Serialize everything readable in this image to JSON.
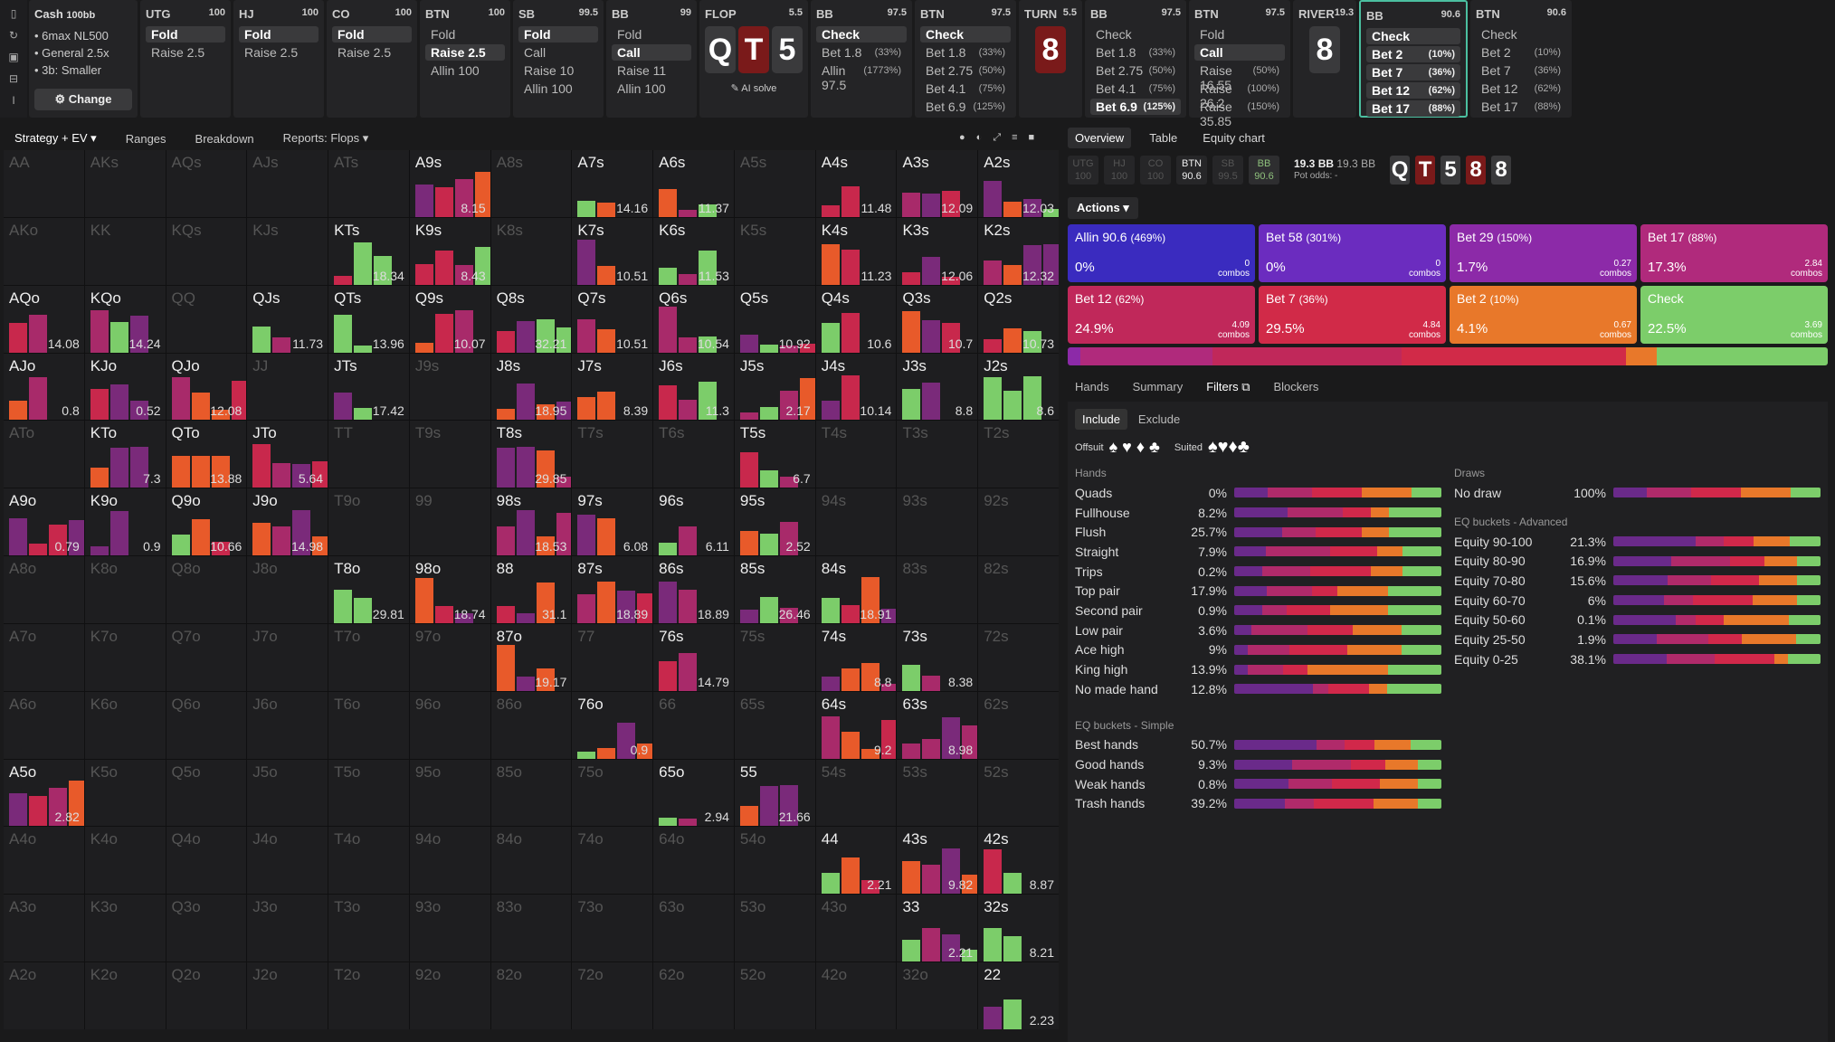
{
  "sidebar_icons": [
    "bookmark-icon",
    "refresh-icon",
    "save-icon",
    "car-icon",
    "text-icon"
  ],
  "cash": {
    "title": "Cash",
    "sub": "100bb",
    "lines": [
      "6max NL500",
      "General 2.5x",
      "3b: Smaller"
    ],
    "change": "⚙ Change"
  },
  "columns": [
    {
      "pos": "UTG",
      "stack": "100",
      "actions": [
        {
          "l": "Fold",
          "sel": true
        },
        {
          "l": "Raise 2.5"
        }
      ]
    },
    {
      "pos": "HJ",
      "stack": "100",
      "actions": [
        {
          "l": "Fold",
          "sel": true
        },
        {
          "l": "Raise 2.5"
        }
      ]
    },
    {
      "pos": "CO",
      "stack": "100",
      "actions": [
        {
          "l": "Fold",
          "sel": true
        },
        {
          "l": "Raise 2.5"
        }
      ]
    },
    {
      "pos": "BTN",
      "stack": "100",
      "actions": [
        {
          "l": "Fold"
        },
        {
          "l": "Raise 2.5",
          "sel": true
        },
        {
          "l": "Allin 100"
        }
      ]
    },
    {
      "pos": "SB",
      "stack": "99.5",
      "actions": [
        {
          "l": "Fold",
          "sel": true
        },
        {
          "l": "Call"
        },
        {
          "l": "Raise 10"
        },
        {
          "l": "Allin 100"
        }
      ]
    },
    {
      "pos": "BB",
      "stack": "99",
      "actions": [
        {
          "l": "Fold"
        },
        {
          "l": "Call",
          "sel": true
        },
        {
          "l": "Raise 11"
        },
        {
          "l": "Allin 100"
        }
      ]
    },
    {
      "street": "FLOP",
      "pot": "5.5",
      "cards": [
        {
          "c": "Q"
        },
        {
          "c": "T",
          "red": true
        },
        {
          "c": "5"
        }
      ],
      "ai": "✎ AI solve"
    },
    {
      "pos": "BB",
      "stack": "97.5",
      "actions": [
        {
          "l": "Check",
          "sel": true
        },
        {
          "l": "Bet 1.8",
          "p": "(33%)"
        },
        {
          "l": "Allin 97.5",
          "p": "(1773%)"
        }
      ]
    },
    {
      "pos": "BTN",
      "stack": "97.5",
      "actions": [
        {
          "l": "Check",
          "sel": true
        },
        {
          "l": "Bet 1.8",
          "p": "(33%)"
        },
        {
          "l": "Bet 2.75",
          "p": "(50%)"
        },
        {
          "l": "Bet 4.1",
          "p": "(75%)"
        },
        {
          "l": "Bet 6.9",
          "p": "(125%)"
        }
      ]
    },
    {
      "street": "TURN",
      "pot": "5.5",
      "cards": [
        {
          "c": "8",
          "red": true
        }
      ]
    },
    {
      "pos": "BB",
      "stack": "97.5",
      "actions": [
        {
          "l": "Check"
        },
        {
          "l": "Bet 1.8",
          "p": "(33%)"
        },
        {
          "l": "Bet 2.75",
          "p": "(50%)"
        },
        {
          "l": "Bet 4.1",
          "p": "(75%)"
        },
        {
          "l": "Bet 6.9",
          "p": "(125%)",
          "sel": true
        }
      ]
    },
    {
      "pos": "BTN",
      "stack": "97.5",
      "actions": [
        {
          "l": "Fold"
        },
        {
          "l": "Call",
          "sel": true
        },
        {
          "l": "Raise 16.55",
          "p": "(50%)"
        },
        {
          "l": "Raise 26.2",
          "p": "(100%)"
        },
        {
          "l": "Raise 35.85",
          "p": "(150%)"
        }
      ]
    },
    {
      "street": "RIVER",
      "pot": "19.3",
      "cards": [
        {
          "c": "8"
        }
      ]
    },
    {
      "pos": "BB",
      "stack": "90.6",
      "active": true,
      "actions": [
        {
          "l": "Check",
          "sel": true
        },
        {
          "l": "Bet 2",
          "p": "(10%)",
          "sel": true
        },
        {
          "l": "Bet 7",
          "p": "(36%)",
          "sel": true
        },
        {
          "l": "Bet 12",
          "p": "(62%)",
          "sel": true
        },
        {
          "l": "Bet 17",
          "p": "(88%)",
          "sel": true
        }
      ]
    },
    {
      "pos": "BTN",
      "stack": "90.6",
      "actions": [
        {
          "l": "Check"
        },
        {
          "l": "Bet 2",
          "p": "(10%)"
        },
        {
          "l": "Bet 7",
          "p": "(36%)"
        },
        {
          "l": "Bet 12",
          "p": "(62%)"
        },
        {
          "l": "Bet 17",
          "p": "(88%)"
        }
      ]
    }
  ],
  "tabs": [
    "Strategy + EV ▾",
    "Ranges",
    "Breakdown",
    "Reports: Flops ▾"
  ],
  "grid": [
    [
      "AA",
      "AKs",
      "AQs",
      "AJs",
      "ATs",
      "A9s",
      "A8s",
      "A7s",
      "A6s",
      "A5s",
      "A4s",
      "A3s",
      "A2s"
    ],
    [
      "AKo",
      "KK",
      "KQs",
      "KJs",
      "KTs",
      "K9s",
      "K8s",
      "K7s",
      "K6s",
      "K5s",
      "K4s",
      "K3s",
      "K2s"
    ],
    [
      "AQo",
      "KQo",
      "QQ",
      "QJs",
      "QTs",
      "Q9s",
      "Q8s",
      "Q7s",
      "Q6s",
      "Q5s",
      "Q4s",
      "Q3s",
      "Q2s"
    ],
    [
      "AJo",
      "KJo",
      "QJo",
      "JJ",
      "JTs",
      "J9s",
      "J8s",
      "J7s",
      "J6s",
      "J5s",
      "J4s",
      "J3s",
      "J2s"
    ],
    [
      "ATo",
      "KTo",
      "QTo",
      "JTo",
      "TT",
      "T9s",
      "T8s",
      "T7s",
      "T6s",
      "T5s",
      "T4s",
      "T3s",
      "T2s"
    ],
    [
      "A9o",
      "K9o",
      "Q9o",
      "J9o",
      "T9o",
      "99",
      "98s",
      "97s",
      "96s",
      "95s",
      "94s",
      "93s",
      "92s"
    ],
    [
      "A8o",
      "K8o",
      "Q8o",
      "J8o",
      "T8o",
      "98o",
      "88",
      "87s",
      "86s",
      "85s",
      "84s",
      "83s",
      "82s"
    ],
    [
      "A7o",
      "K7o",
      "Q7o",
      "J7o",
      "T7o",
      "97o",
      "87o",
      "77",
      "76s",
      "75s",
      "74s",
      "73s",
      "72s"
    ],
    [
      "A6o",
      "K6o",
      "Q6o",
      "J6o",
      "T6o",
      "96o",
      "86o",
      "76o",
      "66",
      "65s",
      "64s",
      "63s",
      "62s"
    ],
    [
      "A5o",
      "K5o",
      "Q5o",
      "J5o",
      "T5o",
      "95o",
      "85o",
      "75o",
      "65o",
      "55",
      "54s",
      "53s",
      "52s"
    ],
    [
      "A4o",
      "K4o",
      "Q4o",
      "J4o",
      "T4o",
      "94o",
      "84o",
      "74o",
      "64o",
      "54o",
      "44",
      "43s",
      "42s"
    ],
    [
      "A3o",
      "K3o",
      "Q3o",
      "J3o",
      "T3o",
      "93o",
      "83o",
      "73o",
      "63o",
      "53o",
      "43o",
      "33",
      "32s"
    ],
    [
      "A2o",
      "K2o",
      "Q2o",
      "J2o",
      "T2o",
      "92o",
      "82o",
      "72o",
      "62o",
      "52o",
      "42o",
      "32o",
      "22"
    ]
  ],
  "ev": {
    "0,5": "8.15",
    "0,7": "14.16",
    "0,8": "11.37",
    "0,10": "11.48",
    "0,11": "12.09",
    "0,12": "12.03",
    "1,4": "18.34",
    "1,5": "8.43",
    "1,7": "10.51",
    "1,8": "11.53",
    "1,10": "11.23",
    "1,11": "12.06",
    "1,12": "12.32",
    "2,0": "14.08",
    "2,1": "14.24",
    "2,3": "11.73",
    "2,4": "13.96",
    "2,5": "10.07",
    "2,6": "32.21",
    "2,7": "10.51",
    "2,8": "10.54",
    "2,9": "10.92",
    "2,10": "10.6",
    "2,11": "10.7",
    "2,12": "10.73",
    "3,0": "0.8",
    "3,1": "0.52",
    "3,2": "12.08",
    "3,4": "17.42",
    "3,6": "18.95",
    "3,7": "8.39",
    "3,8": "11.3",
    "3,9": "2.17",
    "3,10": "10.14",
    "3,11": "8.8",
    "3,12": "8.6",
    "4,1": "7.3",
    "4,2": "13.88",
    "4,3": "5.64",
    "4,6": "29.85",
    "4,9": "6.7",
    "5,0": "0.79",
    "5,1": "0.9",
    "5,2": "10.66",
    "5,3": "14.98",
    "5,6": "18.53",
    "5,7": "6.08",
    "5,8": "6.11",
    "5,9": "2.52",
    "6,4": "29.81",
    "6,5": "18.74",
    "6,6": "31.1",
    "6,7": "18.89",
    "6,8": "18.89",
    "6,9": "26.46",
    "6,10": "18.91",
    "7,6": "19.17",
    "7,8": "14.79",
    "7,10": "8.8",
    "7,11": "8.38",
    "8,7": "0.9",
    "8,10": "9.2",
    "8,11": "8.98",
    "9,0": "2.82",
    "9,8": "2.94",
    "9,9": "21.66",
    "10,10": "2.21",
    "10,11": "9.82",
    "10,12": "8.87",
    "11,11": "2.21",
    "11,12": "8.21",
    "12,12": "2.23"
  },
  "active_cells": [
    "0,5",
    "0,7",
    "0,8",
    "0,10",
    "0,11",
    "0,12",
    "1,4",
    "1,5",
    "1,7",
    "1,8",
    "1,10",
    "1,11",
    "1,12",
    "2,0",
    "2,1",
    "2,3",
    "2,4",
    "2,5",
    "2,6",
    "2,7",
    "2,8",
    "2,9",
    "2,10",
    "2,11",
    "2,12",
    "3,0",
    "3,1",
    "3,2",
    "3,4",
    "3,6",
    "3,7",
    "3,8",
    "3,9",
    "3,10",
    "3,11",
    "3,12",
    "4,1",
    "4,2",
    "4,3",
    "4,6",
    "4,9",
    "5,0",
    "5,1",
    "5,2",
    "5,3",
    "5,6",
    "5,7",
    "5,8",
    "5,9",
    "6,4",
    "6,5",
    "6,6",
    "6,7",
    "6,8",
    "6,9",
    "6,10",
    "7,6",
    "7,8",
    "7,10",
    "7,11",
    "8,7",
    "8,10",
    "8,11",
    "9,0",
    "9,8",
    "9,9",
    "10,10",
    "10,11",
    "10,12",
    "11,11",
    "11,12",
    "12,12"
  ],
  "right": {
    "tabs": [
      "Overview",
      "Table",
      "Equity chart"
    ],
    "pills": [
      {
        "p": "UTG",
        "s": "100"
      },
      {
        "p": "HJ",
        "s": "100"
      },
      {
        "p": "CO",
        "s": "100"
      },
      {
        "p": "BTN",
        "s": "90.6",
        "on": true
      },
      {
        "p": "SB",
        "s": "99.5"
      },
      {
        "p": "BB",
        "s": "90.6",
        "bb": true
      }
    ],
    "pot": "19.3 BB",
    "pot2": "19.3 BB",
    "potodds": "Pot odds: -",
    "board": [
      {
        "c": "Q"
      },
      {
        "c": "T",
        "red": true
      },
      {
        "c": "5"
      },
      {
        "c": "8",
        "red": true
      },
      {
        "c": "8"
      }
    ],
    "actions_label": "Actions ▾",
    "tiles": [
      {
        "t": "Allin 90.6",
        "p": "(469%)",
        "pct": "0%",
        "c": "0",
        "color": "#3a2bbf"
      },
      {
        "t": "Bet 58",
        "p": "(301%)",
        "pct": "0%",
        "c": "0",
        "color": "#6b2cbf"
      },
      {
        "t": "Bet 29",
        "p": "(150%)",
        "pct": "1.7%",
        "c": "0.27",
        "color": "#8c2aa8"
      },
      {
        "t": "Bet 17",
        "p": "(88%)",
        "pct": "17.3%",
        "c": "2.84",
        "color": "#b02a7c"
      },
      {
        "t": "Bet 12",
        "p": "(62%)",
        "pct": "24.9%",
        "c": "4.09",
        "color": "#c0285a"
      },
      {
        "t": "Bet 7",
        "p": "(36%)",
        "pct": "29.5%",
        "c": "4.84",
        "color": "#d12a48"
      },
      {
        "t": "Bet 2",
        "p": "(10%)",
        "pct": "4.1%",
        "c": "0.67",
        "color": "#e8782a"
      },
      {
        "t": "Check",
        "p": "",
        "pct": "22.5%",
        "c": "3.69",
        "color": "#7ccd6a"
      }
    ],
    "combos_label": "combos",
    "subtabs": [
      "Hands",
      "Summary",
      "Filters ⧉",
      "Blockers"
    ],
    "incl": [
      "Include",
      "Exclude"
    ],
    "offsuit_label": "Offsuit",
    "suited_label": "Suited",
    "offsuit": "♠ ♥ ♦ ♣",
    "suited": "♠♥♦♣",
    "hands_hdr": "Hands",
    "hands": [
      [
        "Quads",
        "0%"
      ],
      [
        "Fullhouse",
        "8.2%"
      ],
      [
        "Flush",
        "25.7%"
      ],
      [
        "Straight",
        "7.9%"
      ],
      [
        "Trips",
        "0.2%"
      ],
      [
        "Top pair",
        "17.9%"
      ],
      [
        "Second pair",
        "0.9%"
      ],
      [
        "Low pair",
        "3.6%"
      ],
      [
        "Ace high",
        "9%"
      ],
      [
        "King high",
        "13.9%"
      ],
      [
        "No made hand",
        "12.8%"
      ]
    ],
    "eqs_hdr": "EQ buckets - Simple",
    "eqs": [
      [
        "Best hands",
        "50.7%"
      ],
      [
        "Good hands",
        "9.3%"
      ],
      [
        "Weak hands",
        "0.8%"
      ],
      [
        "Trash hands",
        "39.2%"
      ]
    ],
    "draws_hdr": "Draws",
    "draws": [
      [
        "No draw",
        "100%"
      ]
    ],
    "eqa_hdr": "EQ buckets - Advanced",
    "eqa": [
      [
        "Equity 90-100",
        "21.3%"
      ],
      [
        "Equity 80-90",
        "16.9%"
      ],
      [
        "Equity 70-80",
        "15.6%"
      ],
      [
        "Equity 60-70",
        "6%"
      ],
      [
        "Equity 50-60",
        "0.1%"
      ],
      [
        "Equity 25-50",
        "1.9%"
      ],
      [
        "Equity 0-25",
        "38.1%"
      ]
    ]
  }
}
